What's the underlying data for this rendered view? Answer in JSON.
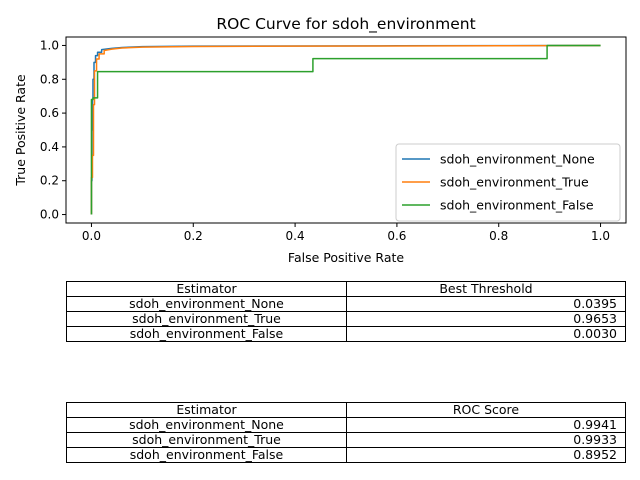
{
  "chart_data": {
    "type": "line",
    "title": "ROC Curve for sdoh_environment",
    "xlabel": "False Positive Rate",
    "ylabel": "True Positive Rate",
    "xlim": [
      -0.05,
      1.05
    ],
    "ylim": [
      -0.05,
      1.05
    ],
    "xticks": [
      0.0,
      0.2,
      0.4,
      0.6,
      0.8,
      1.0
    ],
    "yticks": [
      0.0,
      0.2,
      0.4,
      0.6,
      0.8,
      1.0
    ],
    "xtick_labels": [
      "0.0",
      "0.2",
      "0.4",
      "0.6",
      "0.8",
      "1.0"
    ],
    "ytick_labels": [
      "0.0",
      "0.2",
      "0.4",
      "0.6",
      "0.8",
      "1.0"
    ],
    "grid": false,
    "legend_position": "lower-right",
    "series": [
      {
        "name": "sdoh_environment_None",
        "color": "#1f77b4",
        "x": [
          0.0,
          0.0,
          0.001,
          0.001,
          0.002,
          0.002,
          0.003,
          0.003,
          0.005,
          0.005,
          0.008,
          0.008,
          0.012,
          0.012,
          0.02,
          0.02,
          0.04,
          0.06,
          0.1,
          0.2,
          0.4,
          0.6,
          0.8,
          1.0
        ],
        "y": [
          0.0,
          0.2,
          0.2,
          0.5,
          0.5,
          0.68,
          0.68,
          0.8,
          0.8,
          0.9,
          0.9,
          0.94,
          0.94,
          0.96,
          0.96,
          0.975,
          0.983,
          0.988,
          0.993,
          0.996,
          0.997,
          0.998,
          0.999,
          1.0
        ]
      },
      {
        "name": "sdoh_environment_True",
        "color": "#ff7f0e",
        "x": [
          0.0,
          0.0,
          0.002,
          0.002,
          0.004,
          0.004,
          0.006,
          0.006,
          0.01,
          0.01,
          0.015,
          0.015,
          0.025,
          0.025,
          0.04,
          0.06,
          0.1,
          0.2,
          0.4,
          0.6,
          0.8,
          0.9,
          1.0
        ],
        "y": [
          0.0,
          0.22,
          0.22,
          0.35,
          0.35,
          0.65,
          0.65,
          0.85,
          0.85,
          0.92,
          0.92,
          0.95,
          0.95,
          0.97,
          0.978,
          0.985,
          0.99,
          0.994,
          0.996,
          0.997,
          0.998,
          0.999,
          1.0
        ]
      },
      {
        "name": "sdoh_environment_False",
        "color": "#2ca02c",
        "x": [
          0.0,
          0.0,
          0.003,
          0.003,
          0.012,
          0.012,
          0.435,
          0.435,
          0.895,
          0.895,
          1.0
        ],
        "y": [
          0.0,
          0.68,
          0.68,
          0.69,
          0.69,
          0.845,
          0.845,
          0.922,
          0.922,
          1.0,
          1.0
        ]
      }
    ]
  },
  "threshold_table": {
    "headers": [
      "Estimator",
      "Best Threshold"
    ],
    "rows": [
      [
        "sdoh_environment_None",
        "0.0395"
      ],
      [
        "sdoh_environment_True",
        "0.9653"
      ],
      [
        "sdoh_environment_False",
        "0.0030"
      ]
    ]
  },
  "score_table": {
    "headers": [
      "Estimator",
      "ROC Score"
    ],
    "rows": [
      [
        "sdoh_environment_None",
        "0.9941"
      ],
      [
        "sdoh_environment_True",
        "0.9933"
      ],
      [
        "sdoh_environment_False",
        "0.8952"
      ]
    ]
  }
}
